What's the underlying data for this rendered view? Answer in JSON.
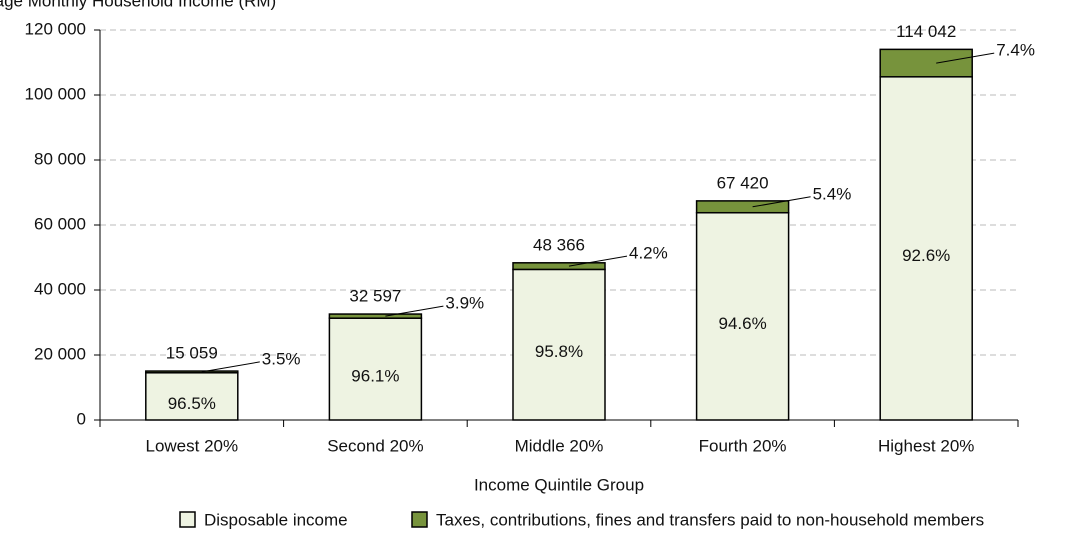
{
  "chart_data": {
    "type": "stacked_bar",
    "ylabel": "Average Monthly Household Income (RM)",
    "xlabel": "Income Quintile Group",
    "categories": [
      "Lowest 20%",
      "Second 20%",
      "Middle 20%",
      "Fourth 20%",
      "Highest 20%"
    ],
    "total_labels": [
      "15 059",
      "32 597",
      "48 366",
      "67 420",
      "114 042"
    ],
    "series": [
      {
        "name": "Disposable income",
        "color": "#eef3e2",
        "values": [
          14532,
          31326,
          46335,
          63779,
          105603
        ],
        "share_labels": [
          "96.5%",
          "96.1%",
          "95.8%",
          "94.6%",
          "92.6%"
        ]
      },
      {
        "name": "Taxes, contributions, fines and transfers paid to non-household members",
        "color": "#77933c",
        "values": [
          527,
          1271,
          2031,
          3641,
          8439
        ],
        "share_labels": [
          "3.5%",
          "3.9%",
          "4.2%",
          "5.4%",
          "7.4%"
        ]
      }
    ],
    "ylim": [
      0,
      120000
    ],
    "yticks": [
      0,
      {
        "value": 20000,
        "label": "20 000"
      },
      {
        "value": 40000,
        "label": "40 000"
      },
      {
        "value": 60000,
        "label": "60 000"
      },
      {
        "value": 80000,
        "label": "80 000"
      },
      {
        "value": 100000,
        "label": "100 000"
      },
      {
        "value": 120000,
        "label": "120 000"
      }
    ],
    "grid": true
  }
}
